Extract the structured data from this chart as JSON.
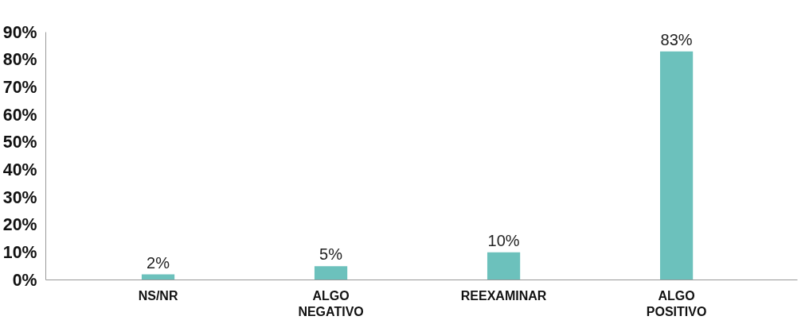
{
  "chart_data": {
    "type": "bar",
    "categories": [
      "NS/NR",
      "ALGO\nNEGATIVO",
      "REEXAMINAR",
      "ALGO\nPOSITIVO"
    ],
    "values": [
      2,
      5,
      10,
      83
    ],
    "value_labels": [
      "2%",
      "5%",
      "10%",
      "83%"
    ],
    "color": "#6cc1bc",
    "ylim": [
      0,
      90
    ],
    "yticks": [
      {
        "value": 0,
        "label": "0%"
      },
      {
        "value": 10,
        "label": "10%"
      },
      {
        "value": 20,
        "label": "20%"
      },
      {
        "value": 30,
        "label": "30%"
      },
      {
        "value": 40,
        "label": "40%"
      },
      {
        "value": 50,
        "label": "50%"
      },
      {
        "value": 60,
        "label": "60%"
      },
      {
        "value": 70,
        "label": "70%"
      },
      {
        "value": 80,
        "label": "80%"
      },
      {
        "value": 90,
        "label": "90%"
      }
    ],
    "grid": false
  }
}
